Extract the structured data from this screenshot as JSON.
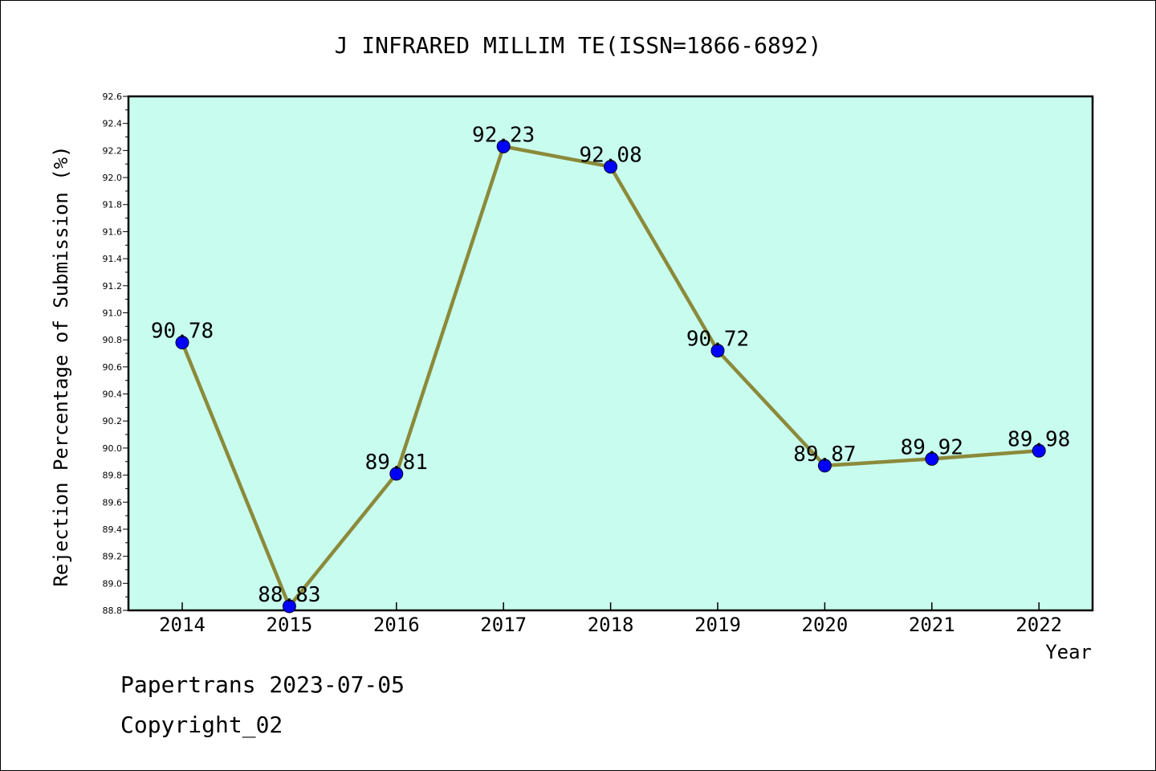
{
  "chart_data": {
    "type": "line",
    "title": "J INFRARED MILLIM TE(ISSN=1866-6892)",
    "xlabel": "Year",
    "ylabel": "Rejection Percentage of Submission (%)",
    "categories": [
      "2014",
      "2015",
      "2016",
      "2017",
      "2018",
      "2019",
      "2020",
      "2021",
      "2022"
    ],
    "values": [
      90.78,
      88.83,
      89.81,
      92.23,
      92.08,
      90.72,
      89.87,
      89.92,
      89.98
    ],
    "data_labels": [
      "90.78",
      "88.83",
      "89.81",
      "92.23",
      "92.08",
      "90.72",
      "89.87",
      "89.92",
      "89.98"
    ],
    "ylim": [
      88.8,
      92.6
    ],
    "yticks": [
      "88.8",
      "89.0",
      "89.2",
      "89.4",
      "89.6",
      "89.8",
      "90.0",
      "90.2",
      "90.4",
      "90.6",
      "90.8",
      "91.0",
      "91.2",
      "91.4",
      "91.6",
      "91.8",
      "92.0",
      "92.2",
      "92.4",
      "92.6"
    ],
    "grid": false,
    "colors": {
      "plot_background": "#c8fcee",
      "line": "#8b8a3a",
      "marker": "#0000ff"
    }
  },
  "footer": {
    "line1": "Papertrans 2023-07-05",
    "line2": "Copyright_02"
  }
}
